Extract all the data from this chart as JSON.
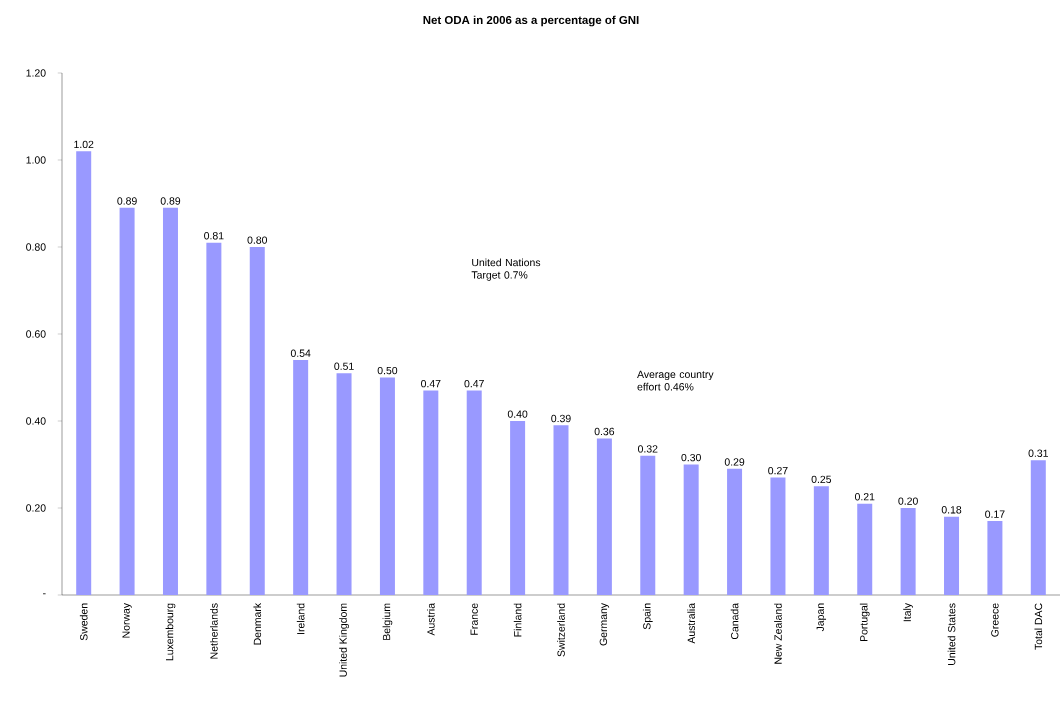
{
  "chart_data": {
    "type": "bar",
    "title": "Net ODA in 2006 as a percentage of GNI",
    "categories": [
      "Sweden",
      "Norway",
      "Luxembourg",
      "Netherlands",
      "Denmark",
      "Ireland",
      "United Kingdom",
      "Belgium",
      "Austria",
      "France",
      "Finland",
      "Switzerland",
      "Germany",
      "Spain",
      "Australia",
      "Canada",
      "New Zealand",
      "Japan",
      "Portugal",
      "Italy",
      "United States",
      "Greece",
      "Total DAC"
    ],
    "values": [
      1.02,
      0.89,
      0.89,
      0.81,
      0.8,
      0.54,
      0.51,
      0.5,
      0.47,
      0.47,
      0.4,
      0.39,
      0.36,
      0.32,
      0.3,
      0.29,
      0.27,
      0.25,
      0.21,
      0.2,
      0.18,
      0.17,
      0.31
    ],
    "value_labels": [
      "1.02",
      "0.89",
      "0.89",
      "0.81",
      "0.80",
      "0.54",
      "0.51",
      "0.50",
      "0.47",
      "0.47",
      "0.40",
      "0.39",
      "0.36",
      "0.32",
      "0.30",
      "0.29",
      "0.27",
      "0.25",
      "0.21",
      "0.20",
      "0.18",
      "0.17",
      "0.31"
    ],
    "color": "#9999ff",
    "ylim": [
      0,
      1.2
    ],
    "yticks": [
      {
        "value": 0,
        "label": "-"
      },
      {
        "value": 0.2,
        "label": "0.20"
      },
      {
        "value": 0.4,
        "label": "0.40"
      },
      {
        "value": 0.6,
        "label": "0.60"
      },
      {
        "value": 0.8,
        "label": "0.80"
      },
      {
        "value": 1.0,
        "label": "1.00"
      },
      {
        "value": 1.2,
        "label": "1.20"
      }
    ],
    "annotations": [
      "United Nations Target 0.7%",
      "Average country effort 0.46%"
    ],
    "grid": false
  }
}
